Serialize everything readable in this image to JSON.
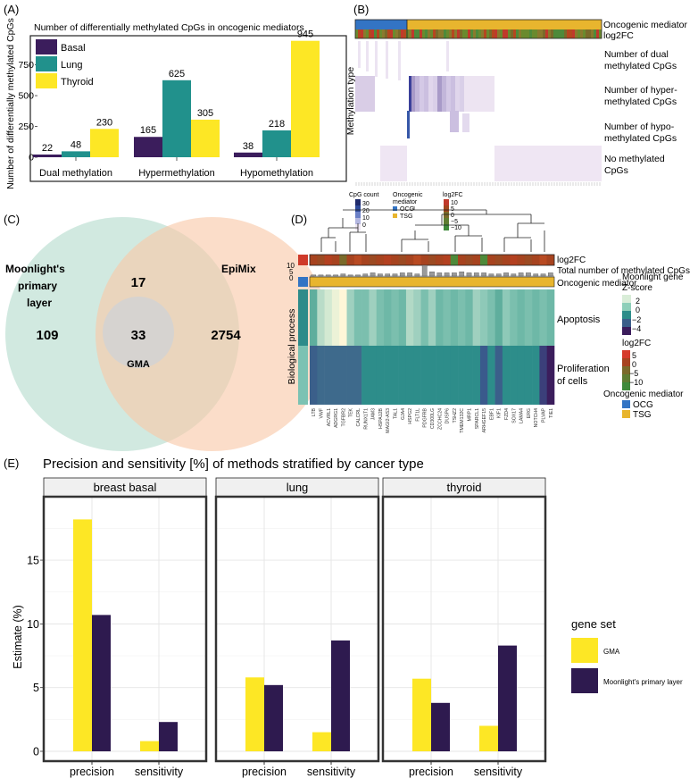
{
  "panel_labels": {
    "a": "(A)",
    "b": "(B)",
    "c": "(C)",
    "d": "(D)",
    "e": "(E)"
  },
  "chart_data": [
    {
      "id": "A",
      "type": "bar",
      "title": "Number of differentially methylated CpGs in oncogenic mediators",
      "ylabel": "Number of differentially methylated CpGs",
      "ylim": [
        0,
        950
      ],
      "yticks": [
        0,
        250,
        500,
        750
      ],
      "categories": [
        "Dual methylation",
        "Hypermethylation",
        "Hypomethylation"
      ],
      "series": [
        {
          "name": "Basal",
          "color": "#3b1d5c",
          "values": [
            22,
            165,
            38
          ]
        },
        {
          "name": "Lung",
          "color": "#21918c",
          "values": [
            48,
            625,
            218
          ]
        },
        {
          "name": "Thyroid",
          "color": "#fde725",
          "values": [
            230,
            305,
            945
          ]
        }
      ]
    },
    {
      "id": "B",
      "type": "heatmap",
      "ylabel": "Methylation type",
      "annotations": [
        "Oncogenic mediator",
        "log2FC"
      ],
      "rows": [
        "Number of dual methylated CpGs",
        "Number of hyper-methylated CpGs",
        "Number of hypo-methylated CpGs",
        "No methylated CpGs"
      ],
      "legend_cpg_title": "CpG count",
      "legend_cpg_ticks": [
        "30",
        "20",
        "10",
        "0"
      ],
      "legend_om_title": "Oncogenic mediator",
      "legend_om_items": [
        "OCG",
        "TSG"
      ],
      "legend_fc_title": "log2FC",
      "legend_fc_ticks": [
        "10",
        "5",
        "0",
        "−5",
        "−10"
      ]
    },
    {
      "id": "C",
      "type": "venn",
      "sets": [
        "Moonlight's primary layer",
        "EpiMix"
      ],
      "only_moonlight": 109,
      "overlap_only": 17,
      "gma": 33,
      "gma_label": "GMA",
      "only_epimix": 2754
    },
    {
      "id": "D",
      "type": "heatmap",
      "ylabel": "Biological process",
      "tracks": [
        "log2FC",
        "Total number of methylated CpGs",
        "Oncogenic mediator"
      ],
      "track_axis": [
        "10",
        "5",
        "0"
      ],
      "rows": [
        "Apoptosis",
        "Proliferation of cells"
      ],
      "genes": [
        "LTB",
        "VWF",
        "ACVRL1",
        "ADGRG1",
        "TGFBR2",
        "TEK",
        "CALCRL",
        "RUNX1T1",
        "JAM3",
        "HSPA12B",
        "MAGI2-AS3",
        "TAL1",
        "GJA4",
        "HSPG2",
        "FLT1L",
        "PDGFRB",
        "CD300LG",
        "ZCCHC24",
        "DUSP6",
        "TSHZ2",
        "TMEM132C",
        "MRP1",
        "SPARCL1",
        "ARHGEF15",
        "EBF1",
        "KIF1",
        "FZD4",
        "SOX17",
        "LAMA4",
        "ERG",
        "NOTCH4",
        "PLVAP",
        "TIE1"
      ],
      "legend_z_title": "Moonlight gene Z-score",
      "legend_z_ticks": [
        "2",
        "0",
        "−2",
        "−4"
      ],
      "legend_fc_title": "log2FC",
      "legend_fc_ticks": [
        "5",
        "0",
        "−5",
        "−10"
      ],
      "legend_om_title": "Oncogenic mediator",
      "legend_om_items": [
        "OCG",
        "TSG"
      ]
    },
    {
      "id": "E",
      "type": "bar",
      "title": "Precision and sensitivity [%] of methods stratified by cancer type",
      "ylabel": "Estimate (%)",
      "ylim": [
        0,
        19
      ],
      "yticks": [
        0,
        5,
        10,
        15
      ],
      "categories": [
        "precision",
        "sensitivity"
      ],
      "facets": [
        {
          "name": "breast basal",
          "series": [
            {
              "name": "GMA",
              "values": [
                18.2,
                0.8
              ]
            },
            {
              "name": "Moonlight's primary layer",
              "values": [
                10.7,
                2.3
              ]
            }
          ]
        },
        {
          "name": "lung",
          "series": [
            {
              "name": "GMA",
              "values": [
                5.8,
                1.5
              ]
            },
            {
              "name": "Moonlight's primary layer",
              "values": [
                5.2,
                8.7
              ]
            }
          ]
        },
        {
          "name": "thyroid",
          "series": [
            {
              "name": "GMA",
              "values": [
                5.7,
                2.0
              ]
            },
            {
              "name": "Moonlight's primary layer",
              "values": [
                3.8,
                8.3
              ]
            }
          ]
        }
      ],
      "legend_title": "gene set",
      "legend_items": [
        "GMA",
        "Moonlight's primary layer"
      ],
      "colors": [
        "#fde725",
        "#2e1a4f"
      ]
    }
  ]
}
